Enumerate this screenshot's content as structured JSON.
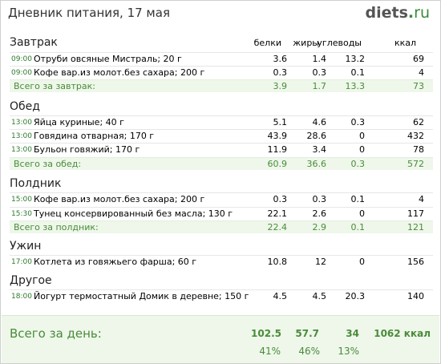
{
  "header": {
    "title": "Дневник питания, 17 мая",
    "logo_main": "diets",
    "logo_dot": ".",
    "logo_tld": "ru"
  },
  "columns": {
    "protein": "белки",
    "fat": "жиры",
    "carbs": "углеводы",
    "kcal": "ккал"
  },
  "meals": {
    "breakfast": {
      "name": "Завтрак",
      "items": [
        {
          "time": "09:00",
          "name": "Отруби овсяные Мистраль; 20 г",
          "protein": "3.6",
          "fat": "1.4",
          "carbs": "13.2",
          "kcal": "69"
        },
        {
          "time": "09:00",
          "name": "Кофе вар.из молот.без сахара; 200 г",
          "protein": "0.3",
          "fat": "0.3",
          "carbs": "0.1",
          "kcal": "4"
        }
      ],
      "total": {
        "label": "Всего за завтрак:",
        "protein": "3.9",
        "fat": "1.7",
        "carbs": "13.3",
        "kcal": "73"
      }
    },
    "lunch": {
      "name": "Обед",
      "items": [
        {
          "time": "13:00",
          "name": "Яйца куриные; 40 г",
          "protein": "5.1",
          "fat": "4.6",
          "carbs": "0.3",
          "kcal": "62"
        },
        {
          "time": "13:00",
          "name": "Говядина отварная; 170 г",
          "protein": "43.9",
          "fat": "28.6",
          "carbs": "0",
          "kcal": "432"
        },
        {
          "time": "13:00",
          "name": "Бульон говяжий; 170 г",
          "protein": "11.9",
          "fat": "3.4",
          "carbs": "0",
          "kcal": "78"
        }
      ],
      "total": {
        "label": "Всего за обед:",
        "protein": "60.9",
        "fat": "36.6",
        "carbs": "0.3",
        "kcal": "572"
      }
    },
    "snack": {
      "name": "Полдник",
      "items": [
        {
          "time": "15:00",
          "name": "Кофе вар.из молот.без сахара; 200 г",
          "protein": "0.3",
          "fat": "0.3",
          "carbs": "0.1",
          "kcal": "4"
        },
        {
          "time": "15:30",
          "name": "Тунец консервированный без масла; 130 г",
          "protein": "22.1",
          "fat": "2.6",
          "carbs": "0",
          "kcal": "117"
        }
      ],
      "total": {
        "label": "Всего за полдник:",
        "protein": "22.4",
        "fat": "2.9",
        "carbs": "0.1",
        "kcal": "121"
      }
    },
    "dinner": {
      "name": "Ужин",
      "items": [
        {
          "time": "17:00",
          "name": "Котлета из говяжьего фарша; 60 г",
          "protein": "10.8",
          "fat": "12",
          "carbs": "0",
          "kcal": "156"
        }
      ]
    },
    "other": {
      "name": "Другое",
      "items": [
        {
          "time": "18:00",
          "name": "Йогурт термостатный Домик в деревне; 150 г",
          "protein": "4.5",
          "fat": "4.5",
          "carbs": "20.3",
          "kcal": "140"
        }
      ]
    }
  },
  "day_total": {
    "label": "Всего за день:",
    "protein": "102.5",
    "fat": "57.7",
    "carbs": "34",
    "kcal": "1062 ккал",
    "protein_pct": "41%",
    "fat_pct": "46%",
    "carbs_pct": "13%"
  },
  "colors": {
    "accent_green": "#4a8b3a",
    "total_bg": "#eef7ea",
    "time_green": "#2f7a2f"
  }
}
